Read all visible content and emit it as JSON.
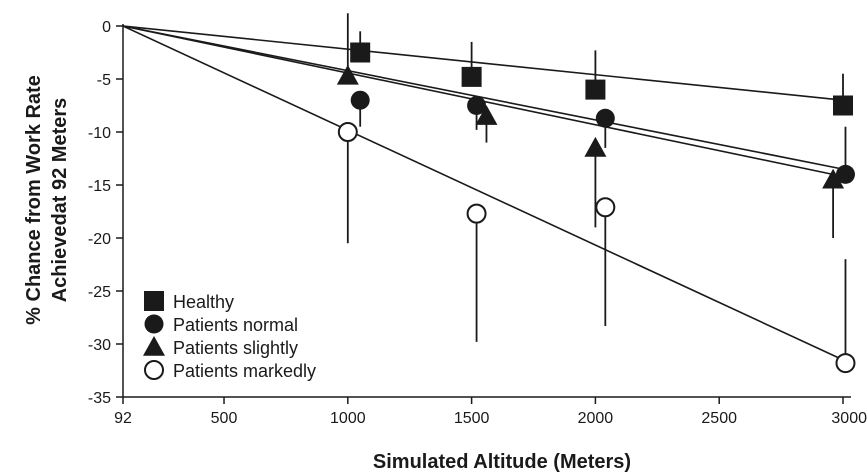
{
  "chart_data": {
    "type": "scatter",
    "xlabel": "Simulated Altitude (Meters)",
    "ylabel_lines": [
      "% Chance from Work Rate",
      "Achievedat 92 Meters"
    ],
    "x_ticks": [
      92,
      500,
      1000,
      1500,
      2000,
      2500,
      3000
    ],
    "y_ticks": [
      0,
      -5,
      -10,
      -15,
      -20,
      -25,
      -30,
      -35
    ],
    "xlim": [
      92,
      3000
    ],
    "ylim": [
      -35,
      0
    ],
    "grid": false,
    "legend_position": "lower-left",
    "series": [
      {
        "name": "Healthy",
        "marker": "square",
        "points": [
          {
            "x": 1050,
            "y": -2.5,
            "err_low": -2.5,
            "err_high": -0.5
          },
          {
            "x": 1500,
            "y": -4.8,
            "err_low": -4.8,
            "err_high": -1.5
          },
          {
            "x": 2000,
            "y": -6.0,
            "err_low": -6.0,
            "err_high": -2.3
          },
          {
            "x": 3000,
            "y": -7.5,
            "err_low": -7.5,
            "err_high": -4.5
          }
        ],
        "fit": {
          "x1": 92,
          "y1": 0,
          "x2": 3000,
          "y2": -7.0
        }
      },
      {
        "name": "Patients normal",
        "marker": "circle",
        "points": [
          {
            "x": 1050,
            "y": -7.0,
            "err_low": -9.5,
            "err_high": -7.0
          },
          {
            "x": 1520,
            "y": -7.5,
            "err_low": -9.8,
            "err_high": -7.5
          },
          {
            "x": 2040,
            "y": -8.7,
            "err_low": -11.5,
            "err_high": -8.7
          },
          {
            "x": 3010,
            "y": -14.0,
            "err_low": -14.0,
            "err_high": -9.5
          }
        ],
        "fit": {
          "x1": 92,
          "y1": 0,
          "x2": 3000,
          "y2": -13.5
        }
      },
      {
        "name": "Patients slightly",
        "marker": "triangle",
        "points": [
          {
            "x": 1000,
            "y": -4.7,
            "err_low": -4.7,
            "err_high": 1.2
          },
          {
            "x": 1560,
            "y": -8.5,
            "err_low": -11.0,
            "err_high": -8.5
          },
          {
            "x": 2000,
            "y": -11.5,
            "err_low": -19.0,
            "err_high": -11.5
          },
          {
            "x": 2960,
            "y": -14.5,
            "err_low": -20.0,
            "err_high": -14.5
          }
        ],
        "fit": {
          "x1": 92,
          "y1": 0,
          "x2": 3000,
          "y2": -14.2
        }
      },
      {
        "name": "Patients markedly",
        "marker": "open-circle",
        "points": [
          {
            "x": 1000,
            "y": -10.0,
            "err_low": -20.5,
            "err_high": -10.0
          },
          {
            "x": 1520,
            "y": -17.7,
            "err_low": -29.8,
            "err_high": -17.7
          },
          {
            "x": 2040,
            "y": -17.1,
            "err_low": -28.3,
            "err_high": -17.1
          },
          {
            "x": 3010,
            "y": -31.8,
            "err_low": -31.8,
            "err_high": -22.0
          }
        ],
        "fit": {
          "x1": 92,
          "y1": 0,
          "x2": 3000,
          "y2": -31.5
        }
      }
    ]
  }
}
